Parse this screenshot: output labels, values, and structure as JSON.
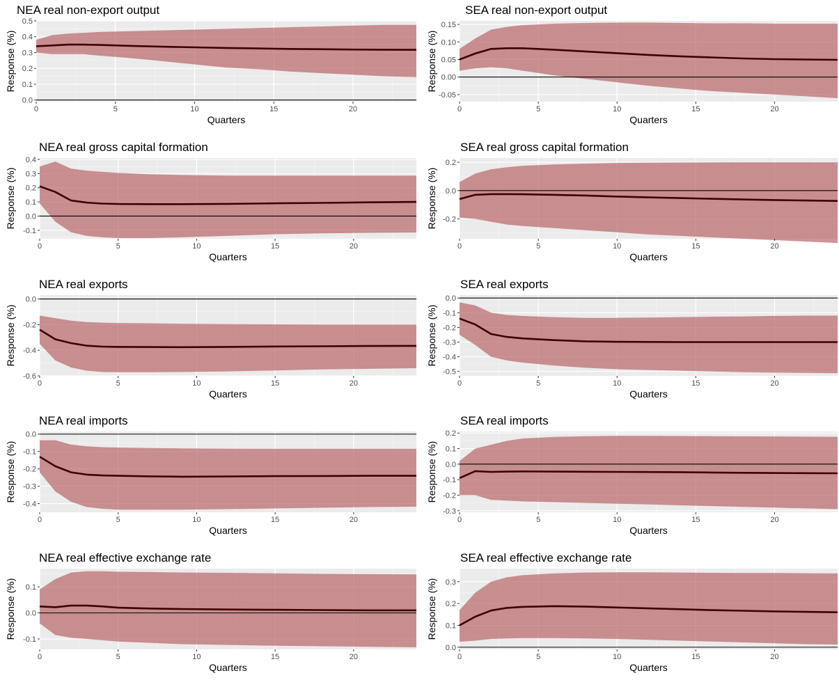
{
  "colors": {
    "panel_background": "#ebebeb",
    "grid_major": "#ffffff",
    "band_fill": "#b55a5e",
    "line": "#3d0000",
    "zero_line": "#000000"
  },
  "chart_data": [
    {
      "type": "line",
      "title": "NEA real non-export output",
      "xlabel": "Quarters",
      "ylabel": "Response (%)",
      "xlim": [
        0,
        24
      ],
      "xticks": [
        0,
        5,
        10,
        15,
        20
      ],
      "ylim": [
        -0.01,
        0.5
      ],
      "yticks": [
        0.0,
        0.1,
        0.2,
        0.3,
        0.4,
        0.5
      ],
      "ytick_labels": [
        "0.0",
        "0.1",
        "0.2",
        "0.3",
        "0.4",
        "0.5"
      ],
      "grid": true,
      "x": [
        0,
        1,
        2,
        3,
        4,
        6,
        8,
        10,
        12,
        14,
        16,
        18,
        20,
        22,
        24
      ],
      "median": [
        0.34,
        0.345,
        0.35,
        0.35,
        0.348,
        0.342,
        0.337,
        0.333,
        0.329,
        0.326,
        0.323,
        0.321,
        0.319,
        0.318,
        0.317
      ],
      "lower": [
        0.3,
        0.29,
        0.29,
        0.29,
        0.28,
        0.265,
        0.245,
        0.225,
        0.205,
        0.195,
        0.18,
        0.17,
        0.16,
        0.15,
        0.145
      ],
      "upper": [
        0.38,
        0.41,
        0.42,
        0.425,
        0.43,
        0.435,
        0.44,
        0.445,
        0.45,
        0.455,
        0.46,
        0.465,
        0.47,
        0.475,
        0.475
      ]
    },
    {
      "type": "line",
      "title": "SEA real non-export output",
      "xlabel": "Quarters",
      "ylabel": "Response (%)",
      "xlim": [
        0,
        24
      ],
      "xticks": [
        0,
        5,
        10,
        15,
        20
      ],
      "ylim": [
        -0.07,
        0.16
      ],
      "yticks": [
        -0.05,
        0.0,
        0.05,
        0.1,
        0.15
      ],
      "ytick_labels": [
        "-0.05",
        "0.00",
        "0.05",
        "0.10",
        "0.15"
      ],
      "grid": true,
      "x": [
        0,
        1,
        2,
        3,
        4,
        6,
        8,
        10,
        12,
        14,
        16,
        18,
        20,
        22,
        24
      ],
      "median": [
        0.05,
        0.067,
        0.08,
        0.082,
        0.082,
        0.078,
        0.073,
        0.068,
        0.063,
        0.059,
        0.056,
        0.053,
        0.051,
        0.05,
        0.049
      ],
      "lower": [
        0.018,
        0.025,
        0.028,
        0.025,
        0.018,
        0.005,
        -0.005,
        -0.015,
        -0.025,
        -0.033,
        -0.04,
        -0.045,
        -0.05,
        -0.055,
        -0.06
      ],
      "upper": [
        0.08,
        0.11,
        0.135,
        0.143,
        0.148,
        0.152,
        0.154,
        0.155,
        0.155,
        0.154,
        0.153,
        0.153,
        0.152,
        0.152,
        0.152
      ]
    },
    {
      "type": "line",
      "title": "NEA real gross capital formation",
      "xlabel": "Quarters",
      "ylabel": "Response (%)",
      "xlim": [
        0,
        24
      ],
      "xticks": [
        0,
        5,
        10,
        15,
        20
      ],
      "ylim": [
        -0.16,
        0.41
      ],
      "yticks": [
        -0.1,
        0.0,
        0.1,
        0.2,
        0.3,
        0.4
      ],
      "ytick_labels": [
        "-0.1",
        "0.0",
        "0.1",
        "0.2",
        "0.3",
        "0.4"
      ],
      "grid": true,
      "x": [
        0,
        1,
        2,
        3,
        4,
        5,
        7,
        9,
        12,
        15,
        18,
        21,
        24
      ],
      "median": [
        0.21,
        0.17,
        0.11,
        0.095,
        0.088,
        0.085,
        0.084,
        0.084,
        0.086,
        0.09,
        0.093,
        0.097,
        0.1
      ],
      "lower": [
        0.09,
        -0.04,
        -0.115,
        -0.14,
        -0.15,
        -0.155,
        -0.155,
        -0.15,
        -0.14,
        -0.128,
        -0.122,
        -0.118,
        -0.116
      ],
      "upper": [
        0.35,
        0.385,
        0.335,
        0.32,
        0.312,
        0.305,
        0.295,
        0.29,
        0.285,
        0.285,
        0.285,
        0.285,
        0.285
      ]
    },
    {
      "type": "line",
      "title": "SEA real gross capital formation",
      "xlabel": "Quarters",
      "ylabel": "Response (%)",
      "xlim": [
        0,
        24
      ],
      "xticks": [
        0,
        5,
        10,
        15,
        20
      ],
      "ylim": [
        -0.34,
        0.23
      ],
      "yticks": [
        -0.2,
        0.0,
        0.2
      ],
      "ytick_labels": [
        "-0.2",
        "0.0",
        "0.2"
      ],
      "grid": true,
      "x": [
        0,
        1,
        2,
        3,
        4,
        6,
        8,
        10,
        12,
        14,
        16,
        18,
        20,
        22,
        24
      ],
      "median": [
        -0.06,
        -0.03,
        -0.025,
        -0.025,
        -0.026,
        -0.03,
        -0.035,
        -0.042,
        -0.048,
        -0.053,
        -0.058,
        -0.063,
        -0.067,
        -0.07,
        -0.073
      ],
      "lower": [
        -0.19,
        -0.2,
        -0.22,
        -0.24,
        -0.25,
        -0.265,
        -0.28,
        -0.295,
        -0.31,
        -0.32,
        -0.33,
        -0.34,
        -0.35,
        -0.36,
        -0.37
      ],
      "upper": [
        0.06,
        0.12,
        0.15,
        0.165,
        0.175,
        0.185,
        0.19,
        0.195,
        0.197,
        0.198,
        0.199,
        0.2,
        0.2,
        0.2,
        0.2
      ]
    },
    {
      "type": "line",
      "title": "NEA real exports",
      "xlabel": "Quarters",
      "ylabel": "Response (%)",
      "xlim": [
        0,
        24
      ],
      "xticks": [
        0,
        5,
        10,
        15,
        20
      ],
      "ylim": [
        -0.6,
        0.03
      ],
      "yticks": [
        -0.6,
        -0.4,
        -0.2,
        0.0
      ],
      "ytick_labels": [
        "-0.6",
        "-0.4",
        "-0.2",
        "0.0"
      ],
      "grid": true,
      "x": [
        0,
        1,
        2,
        3,
        4,
        5,
        7,
        9,
        12,
        15,
        18,
        21,
        24
      ],
      "median": [
        -0.24,
        -0.315,
        -0.345,
        -0.365,
        -0.372,
        -0.374,
        -0.375,
        -0.376,
        -0.374,
        -0.371,
        -0.369,
        -0.367,
        -0.366
      ],
      "lower": [
        -0.35,
        -0.48,
        -0.535,
        -0.56,
        -0.57,
        -0.572,
        -0.572,
        -0.57,
        -0.565,
        -0.558,
        -0.55,
        -0.545,
        -0.54
      ],
      "upper": [
        -0.13,
        -0.15,
        -0.17,
        -0.18,
        -0.185,
        -0.188,
        -0.19,
        -0.193,
        -0.196,
        -0.198,
        -0.199,
        -0.2,
        -0.2
      ]
    },
    {
      "type": "line",
      "title": "SEA real exports",
      "xlabel": "Quarters",
      "ylabel": "Response (%)",
      "xlim": [
        0,
        24
      ],
      "xticks": [
        0,
        5,
        10,
        15,
        20
      ],
      "ylim": [
        -0.53,
        0.02
      ],
      "yticks": [
        -0.5,
        -0.4,
        -0.3,
        -0.2,
        -0.1,
        0.0
      ],
      "ytick_labels": [
        "-0.5",
        "-0.4",
        "-0.3",
        "-0.2",
        "-0.1",
        "0.0"
      ],
      "grid": true,
      "x": [
        0,
        1,
        2,
        3,
        4,
        6,
        8,
        10,
        12,
        14,
        16,
        18,
        20,
        22,
        24
      ],
      "median": [
        -0.14,
        -0.18,
        -0.245,
        -0.265,
        -0.275,
        -0.287,
        -0.295,
        -0.298,
        -0.299,
        -0.3,
        -0.3,
        -0.3,
        -0.3,
        -0.3,
        -0.3
      ],
      "lower": [
        -0.25,
        -0.32,
        -0.4,
        -0.425,
        -0.44,
        -0.46,
        -0.475,
        -0.485,
        -0.49,
        -0.495,
        -0.5,
        -0.505,
        -0.508,
        -0.51,
        -0.512
      ],
      "upper": [
        -0.03,
        -0.05,
        -0.1,
        -0.115,
        -0.122,
        -0.13,
        -0.135,
        -0.135,
        -0.133,
        -0.13,
        -0.127,
        -0.125,
        -0.122,
        -0.12,
        -0.12
      ]
    },
    {
      "type": "line",
      "title": "NEA real imports",
      "xlabel": "Quarters",
      "ylabel": "Response (%)",
      "xlim": [
        0,
        24
      ],
      "xticks": [
        0,
        5,
        10,
        15,
        20
      ],
      "ylim": [
        -0.45,
        0.015
      ],
      "yticks": [
        -0.4,
        -0.3,
        -0.2,
        -0.1,
        0.0
      ],
      "ytick_labels": [
        "-0.4",
        "-0.3",
        "-0.2",
        "-0.1",
        "0.0"
      ],
      "grid": true,
      "x": [
        0,
        1,
        2,
        3,
        4,
        5,
        7,
        9,
        12,
        15,
        18,
        21,
        24
      ],
      "median": [
        -0.13,
        -0.185,
        -0.22,
        -0.233,
        -0.238,
        -0.24,
        -0.243,
        -0.245,
        -0.244,
        -0.242,
        -0.241,
        -0.24,
        -0.24
      ],
      "lower": [
        -0.22,
        -0.33,
        -0.39,
        -0.42,
        -0.43,
        -0.435,
        -0.435,
        -0.435,
        -0.432,
        -0.428,
        -0.424,
        -0.42,
        -0.418
      ],
      "upper": [
        -0.035,
        -0.035,
        -0.06,
        -0.07,
        -0.075,
        -0.077,
        -0.08,
        -0.082,
        -0.084,
        -0.085,
        -0.085,
        -0.085,
        -0.085
      ]
    },
    {
      "type": "line",
      "title": "SEA real imports",
      "xlabel": "Quarters",
      "ylabel": "Response (%)",
      "xlim": [
        0,
        24
      ],
      "xticks": [
        0,
        5,
        10,
        15,
        20
      ],
      "ylim": [
        -0.31,
        0.21
      ],
      "yticks": [
        -0.3,
        -0.2,
        -0.1,
        0.0,
        0.1,
        0.2
      ],
      "ytick_labels": [
        "-0.3",
        "-0.2",
        "-0.1",
        "0.0",
        "0.1",
        "0.2"
      ],
      "grid": true,
      "x": [
        0,
        1,
        2,
        3,
        4,
        6,
        8,
        10,
        12,
        14,
        16,
        18,
        20,
        22,
        24
      ],
      "median": [
        -0.09,
        -0.045,
        -0.05,
        -0.048,
        -0.047,
        -0.048,
        -0.049,
        -0.05,
        -0.051,
        -0.052,
        -0.054,
        -0.056,
        -0.057,
        -0.058,
        -0.059
      ],
      "lower": [
        -0.2,
        -0.2,
        -0.23,
        -0.235,
        -0.24,
        -0.245,
        -0.25,
        -0.255,
        -0.26,
        -0.265,
        -0.27,
        -0.275,
        -0.28,
        -0.285,
        -0.29
      ],
      "upper": [
        0.02,
        0.1,
        0.125,
        0.15,
        0.165,
        0.175,
        0.18,
        0.182,
        0.182,
        0.181,
        0.18,
        0.179,
        0.178,
        0.177,
        0.176
      ]
    },
    {
      "type": "line",
      "title": "NEA real effective exchange rate",
      "xlabel": "Quarters",
      "ylabel": "Response (%)",
      "xlim": [
        0,
        24
      ],
      "xticks": [
        0,
        5,
        10,
        15,
        20
      ],
      "ylim": [
        -0.14,
        0.17
      ],
      "yticks": [
        -0.1,
        0.0,
        0.1
      ],
      "ytick_labels": [
        "-0.1",
        "0.0",
        "0.1"
      ],
      "grid": true,
      "x": [
        0,
        1,
        2,
        3,
        4,
        5,
        7,
        9,
        12,
        15,
        18,
        21,
        24
      ],
      "median": [
        0.025,
        0.022,
        0.028,
        0.028,
        0.025,
        0.02,
        0.017,
        0.015,
        0.013,
        0.012,
        0.011,
        0.01,
        0.01
      ],
      "lower": [
        -0.04,
        -0.085,
        -0.095,
        -0.1,
        -0.105,
        -0.11,
        -0.115,
        -0.12,
        -0.123,
        -0.126,
        -0.128,
        -0.13,
        -0.132
      ],
      "upper": [
        0.09,
        0.13,
        0.155,
        0.16,
        0.16,
        0.158,
        0.157,
        0.155,
        0.154,
        0.152,
        0.15,
        0.149,
        0.148
      ]
    },
    {
      "type": "line",
      "title": "SEA real effective exchange rate",
      "xlabel": "Quarters",
      "ylabel": "Response (%)",
      "xlim": [
        0,
        24
      ],
      "xticks": [
        0,
        5,
        10,
        15,
        20
      ],
      "ylim": [
        -0.01,
        0.36
      ],
      "yticks": [
        0.0,
        0.1,
        0.2,
        0.3
      ],
      "ytick_labels": [
        "0.0",
        "0.1",
        "0.2",
        "0.3"
      ],
      "grid": true,
      "x": [
        0,
        1,
        2,
        3,
        4,
        6,
        8,
        10,
        12,
        14,
        16,
        18,
        20,
        22,
        24
      ],
      "median": [
        0.1,
        0.14,
        0.168,
        0.18,
        0.185,
        0.188,
        0.186,
        0.182,
        0.178,
        0.174,
        0.17,
        0.167,
        0.164,
        0.162,
        0.16
      ],
      "lower": [
        0.025,
        0.03,
        0.038,
        0.04,
        0.042,
        0.042,
        0.04,
        0.038,
        0.034,
        0.03,
        0.026,
        0.022,
        0.018,
        0.014,
        0.012
      ],
      "upper": [
        0.17,
        0.25,
        0.3,
        0.32,
        0.33,
        0.338,
        0.342,
        0.343,
        0.343,
        0.342,
        0.341,
        0.34,
        0.34,
        0.339,
        0.338
      ]
    }
  ]
}
